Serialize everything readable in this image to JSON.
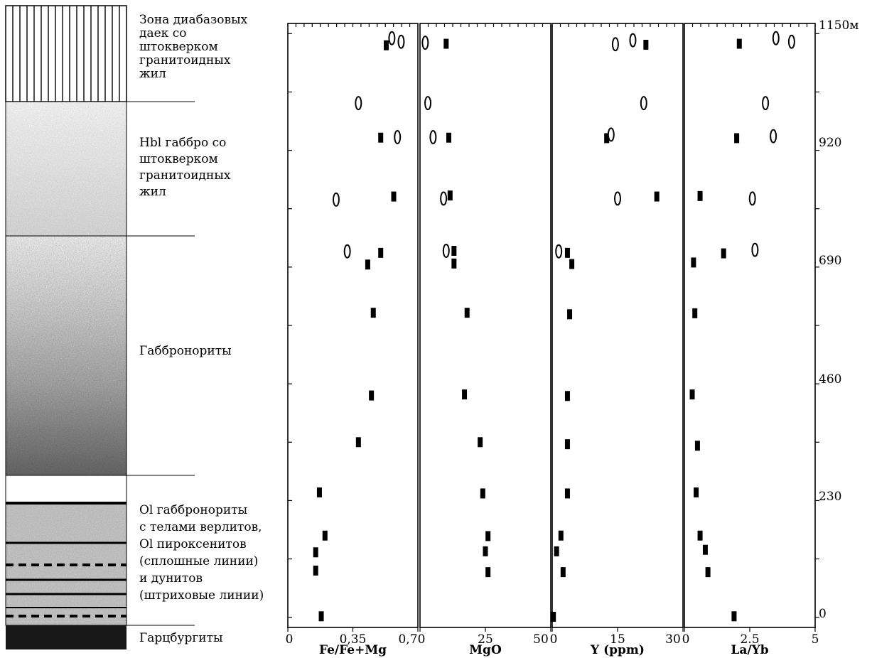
{
  "column": {
    "units": [
      {
        "lines": [
          "Зона диабазовых",
          "даек со",
          "штокверком",
          "гранитоидных",
          "жил"
        ],
        "pattern": "vertical-lines"
      },
      {
        "lines": [
          "Hbl габбро со",
          "штокверком",
          "гранитоидных",
          "жил"
        ],
        "pattern": "light-stipple"
      },
      {
        "lines": [
          "Габбронориты"
        ],
        "pattern": "gradient-stipple"
      },
      {
        "lines": [
          "Ol габбронориты",
          "с телами верлитов,",
          "Ol пироксенитов",
          "(сплошные линии)",
          "и дунитов",
          "(штриховые линии)"
        ],
        "pattern": "layered"
      },
      {
        "lines": [
          "Гарцбургиты"
        ],
        "pattern": "dark"
      }
    ]
  },
  "depth_axis": {
    "labels": [
      "1150м",
      "920",
      "690",
      "460",
      "230",
      "0"
    ]
  },
  "chart_data": [
    {
      "type": "scatter",
      "xlabel": "Fe/Fe+Mg",
      "xlim": [
        0,
        0.7
      ],
      "tick_labels": [
        "0",
        "0,35",
        "0,7"
      ],
      "ylabel": "",
      "ylim": [
        -20,
        1170
      ],
      "series": [
        {
          "marker": "filled-bar",
          "points": [
            {
              "x": 0.53,
              "y": 1127
            },
            {
              "x": 0.5,
              "y": 945
            },
            {
              "x": 0.57,
              "y": 829
            },
            {
              "x": 0.5,
              "y": 718
            },
            {
              "x": 0.43,
              "y": 695
            },
            {
              "x": 0.46,
              "y": 600
            },
            {
              "x": 0.45,
              "y": 437
            },
            {
              "x": 0.38,
              "y": 345
            },
            {
              "x": 0.17,
              "y": 246
            },
            {
              "x": 0.2,
              "y": 161
            },
            {
              "x": 0.15,
              "y": 128
            },
            {
              "x": 0.15,
              "y": 92
            },
            {
              "x": 0.18,
              "y": 2
            }
          ]
        },
        {
          "marker": "open-oval",
          "points": [
            {
              "x": 0.56,
              "y": 1141
            },
            {
              "x": 0.61,
              "y": 1134
            },
            {
              "x": 0.38,
              "y": 1013
            },
            {
              "x": 0.59,
              "y": 946
            },
            {
              "x": 0.26,
              "y": 823
            },
            {
              "x": 0.32,
              "y": 721
            }
          ]
        }
      ]
    },
    {
      "type": "scatter",
      "xlabel": "MgO",
      "xlim": [
        0,
        50
      ],
      "tick_labels": [
        "0",
        "25",
        "50"
      ],
      "ylabel": "",
      "ylim": [
        -20,
        1170
      ],
      "series": [
        {
          "marker": "filled-bar",
          "points": [
            {
              "x": 10,
              "y": 1130
            },
            {
              "x": 11,
              "y": 945
            },
            {
              "x": 11.5,
              "y": 831
            },
            {
              "x": 13,
              "y": 722
            },
            {
              "x": 13,
              "y": 697
            },
            {
              "x": 18,
              "y": 600
            },
            {
              "x": 17,
              "y": 439
            },
            {
              "x": 23,
              "y": 345
            },
            {
              "x": 24,
              "y": 244
            },
            {
              "x": 26,
              "y": 160
            },
            {
              "x": 25,
              "y": 130
            },
            {
              "x": 26,
              "y": 89
            },
            {
              "x": 51,
              "y": 1
            }
          ]
        },
        {
          "marker": "open-oval",
          "points": [
            {
              "x": 2,
              "y": 1132
            },
            {
              "x": 3,
              "y": 1013
            },
            {
              "x": 5,
              "y": 946
            },
            {
              "x": 9,
              "y": 825
            },
            {
              "x": 10,
              "y": 722
            }
          ]
        }
      ]
    },
    {
      "type": "scatter",
      "xlabel": "Y (ppm)",
      "xlim": [
        0,
        30
      ],
      "tick_labels": [
        "0",
        "15",
        "30"
      ],
      "ylabel": "",
      "ylim": [
        -20,
        1170
      ],
      "series": [
        {
          "marker": "filled-bar",
          "points": [
            {
              "x": 21.5,
              "y": 1128
            },
            {
              "x": 12.5,
              "y": 944
            },
            {
              "x": 24,
              "y": 829
            },
            {
              "x": 3.5,
              "y": 718
            },
            {
              "x": 4.5,
              "y": 696
            },
            {
              "x": 4.0,
              "y": 597
            },
            {
              "x": 3.5,
              "y": 436
            },
            {
              "x": 3.5,
              "y": 341
            },
            {
              "x": 3.5,
              "y": 244
            },
            {
              "x": 2.0,
              "y": 161
            },
            {
              "x": 1.0,
              "y": 130
            },
            {
              "x": 2.5,
              "y": 89
            }
          ]
        },
        {
          "marker": "open-oval",
          "points": [
            {
              "x": 18.5,
              "y": 1137
            },
            {
              "x": 14.5,
              "y": 1129
            },
            {
              "x": 21,
              "y": 1013
            },
            {
              "x": 13.5,
              "y": 951
            },
            {
              "x": 15,
              "y": 825
            },
            {
              "x": 1.5,
              "y": 721
            }
          ]
        }
      ]
    },
    {
      "type": "scatter",
      "xlabel": "La/Yb",
      "xlim": [
        0,
        5
      ],
      "tick_labels": [
        "0",
        "2.5",
        "5"
      ],
      "ylabel": "",
      "ylim": [
        -20,
        1170
      ],
      "series": [
        {
          "marker": "filled-bar",
          "points": [
            {
              "x": 2.1,
              "y": 1130
            },
            {
              "x": 2.0,
              "y": 944
            },
            {
              "x": 0.6,
              "y": 830
            },
            {
              "x": 1.5,
              "y": 717
            },
            {
              "x": 0.35,
              "y": 699
            },
            {
              "x": 0.4,
              "y": 599
            },
            {
              "x": 0.3,
              "y": 439
            },
            {
              "x": 0.5,
              "y": 338
            },
            {
              "x": 0.45,
              "y": 246
            },
            {
              "x": 0.6,
              "y": 161
            },
            {
              "x": 0.8,
              "y": 133
            },
            {
              "x": 0.9,
              "y": 89
            },
            {
              "x": 1.9,
              "y": 2
            }
          ]
        },
        {
          "marker": "open-oval",
          "points": [
            {
              "x": 3.5,
              "y": 1141
            },
            {
              "x": 4.1,
              "y": 1134
            },
            {
              "x": 3.1,
              "y": 1013
            },
            {
              "x": 3.4,
              "y": 948
            },
            {
              "x": 2.6,
              "y": 825
            },
            {
              "x": 2.7,
              "y": 724
            }
          ]
        }
      ]
    }
  ]
}
